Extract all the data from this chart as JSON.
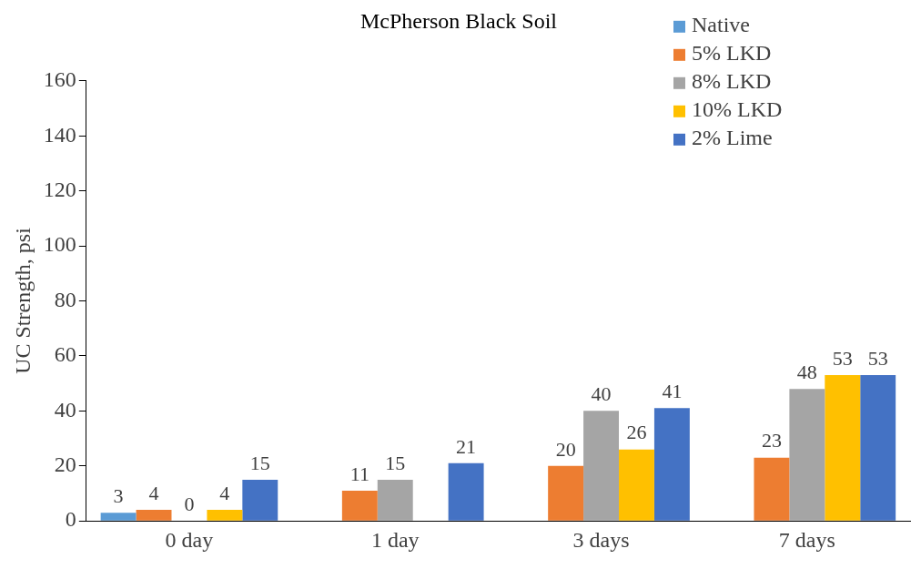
{
  "chart_data": {
    "type": "bar",
    "title": "McPherson Black Soil",
    "ylabel": "UC Strength, psi",
    "categories": [
      "0 day",
      "1 day",
      "3 days",
      "7 days"
    ],
    "series": [
      {
        "name": "Native",
        "color": "#5b9bd5",
        "values": [
          3,
          null,
          null,
          null
        ]
      },
      {
        "name": "5% LKD",
        "color": "#ed7d31",
        "values": [
          4,
          11,
          20,
          23
        ]
      },
      {
        "name": "8% LKD",
        "color": "#a5a5a5",
        "values": [
          0,
          15,
          40,
          48
        ]
      },
      {
        "name": "10% LKD",
        "color": "#ffc000",
        "values": [
          4,
          null,
          26,
          53
        ]
      },
      {
        "name": "2% Lime",
        "color": "#4472c4",
        "values": [
          15,
          21,
          41,
          53
        ]
      }
    ],
    "ylim": [
      0,
      160
    ],
    "yticks": [
      0,
      20,
      40,
      60,
      80,
      100,
      120,
      140,
      160
    ],
    "grid": false,
    "legend": "top right",
    "data_labels": true
  }
}
